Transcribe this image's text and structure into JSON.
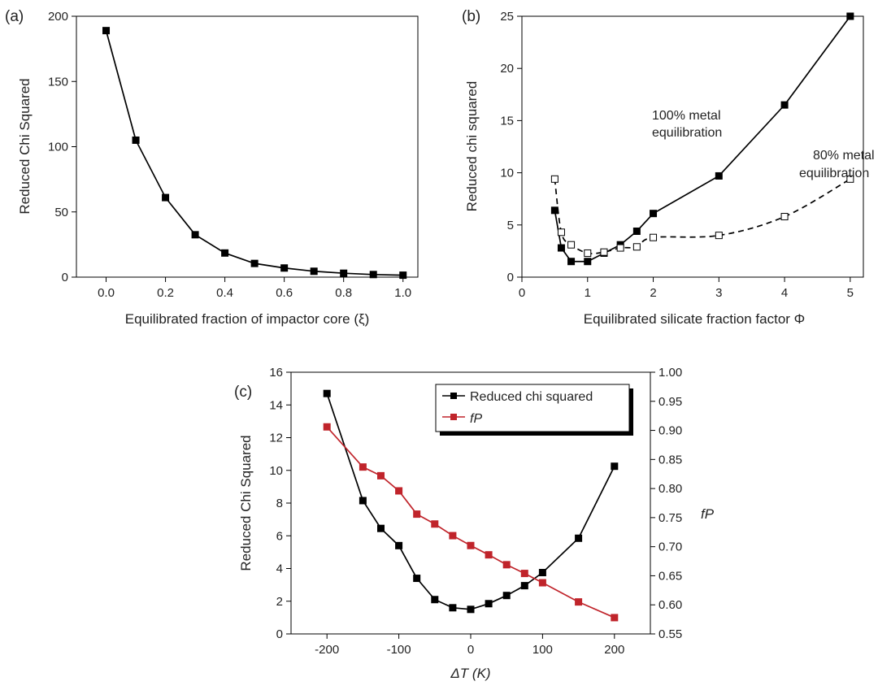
{
  "chart_data": [
    {
      "panel": "(a)",
      "type": "line",
      "xlabel": "Equilibrated fraction of impactor core (ξ)",
      "ylabel": "Reduced Chi Squared",
      "xlim": [
        -0.1,
        1.05
      ],
      "ylim": [
        0,
        200
      ],
      "xticks": [
        "0.0",
        "0.2",
        "0.4",
        "0.6",
        "0.8",
        "1.0"
      ],
      "yticks": [
        "0",
        "50",
        "100",
        "150",
        "200"
      ],
      "series": [
        {
          "x": [
            0.0,
            0.1,
            0.2,
            0.3,
            0.4,
            0.5,
            0.6,
            0.7,
            0.8,
            0.9,
            1.0
          ],
          "y": [
            189,
            105,
            61,
            32.5,
            18.5,
            10.5,
            7,
            4.5,
            3,
            2,
            1.5
          ],
          "color": "#000000",
          "marker": "square-filled",
          "dash": "solid"
        }
      ]
    },
    {
      "panel": "(b)",
      "type": "line",
      "xlabel": "Equilibrated silicate fraction factor Φ",
      "ylabel": "Reduced chi squared",
      "xlim": [
        0,
        5.2
      ],
      "ylim": [
        0,
        25
      ],
      "xticks": [
        "0",
        "1",
        "2",
        "3",
        "4",
        "5"
      ],
      "yticks": [
        "0",
        "5",
        "10",
        "15",
        "20",
        "25"
      ],
      "annotations": [
        "100% metal",
        "equilibration",
        "80% metal",
        "equilibration"
      ],
      "series": [
        {
          "label": "100% metal equilibration",
          "x": [
            0.5,
            0.6,
            0.75,
            1.0,
            1.25,
            1.5,
            1.75,
            2.0,
            3.0,
            4.0,
            5.0
          ],
          "y": [
            6.4,
            2.8,
            1.5,
            1.5,
            2.3,
            3.1,
            4.4,
            6.1,
            9.7,
            16.5,
            25.0
          ],
          "color": "#000000",
          "marker": "square-filled",
          "dash": "solid"
        },
        {
          "label": "80% metal equilibration",
          "x": [
            0.5,
            0.6,
            0.75,
            1.0,
            1.25,
            1.5,
            1.75,
            2.0,
            3.0,
            4.0,
            5.0
          ],
          "y": [
            9.4,
            4.3,
            3.1,
            2.3,
            2.4,
            2.8,
            2.9,
            3.8,
            4.0,
            5.8,
            9.4
          ],
          "color": "#000000",
          "marker": "square-open",
          "dash": "dashed"
        }
      ]
    },
    {
      "panel": "(c)",
      "type": "line",
      "xlabel": "ΔT (K)",
      "ylabel": "Reduced Chi Squared",
      "ylabel_right": "fP",
      "xlim": [
        -250,
        250
      ],
      "ylim": [
        0,
        16
      ],
      "ylim_right": [
        0.55,
        1.0
      ],
      "xticks": [
        "-200",
        "-100",
        "0",
        "100",
        "200"
      ],
      "yticks": [
        "0",
        "2",
        "4",
        "6",
        "8",
        "10",
        "12",
        "14",
        "16"
      ],
      "yticks_right": [
        "0.55",
        "0.60",
        "0.65",
        "0.70",
        "0.75",
        "0.80",
        "0.85",
        "0.90",
        "0.95",
        "1.00"
      ],
      "legend": [
        "Reduced chi squared",
        "fP"
      ],
      "legend_position": "top-right",
      "series": [
        {
          "label": "Reduced chi squared",
          "axis": "left",
          "x": [
            -200,
            -150,
            -125,
            -100,
            -75,
            -50,
            -25,
            0,
            25,
            50,
            75,
            100,
            150,
            200
          ],
          "y": [
            14.7,
            8.15,
            6.45,
            5.4,
            3.4,
            2.1,
            1.6,
            1.5,
            1.85,
            2.35,
            2.95,
            3.75,
            5.85,
            10.25
          ],
          "color": "#000000",
          "marker": "square-filled"
        },
        {
          "label": "fP",
          "axis": "right",
          "x": [
            -200,
            -150,
            -125,
            -100,
            -75,
            -50,
            -25,
            0,
            25,
            50,
            75,
            100,
            150,
            200
          ],
          "y": [
            0.906,
            0.837,
            0.822,
            0.796,
            0.756,
            0.739,
            0.719,
            0.702,
            0.686,
            0.669,
            0.654,
            0.638,
            0.605,
            0.578
          ],
          "color": "#c0242b",
          "marker": "square-filled"
        }
      ]
    }
  ]
}
